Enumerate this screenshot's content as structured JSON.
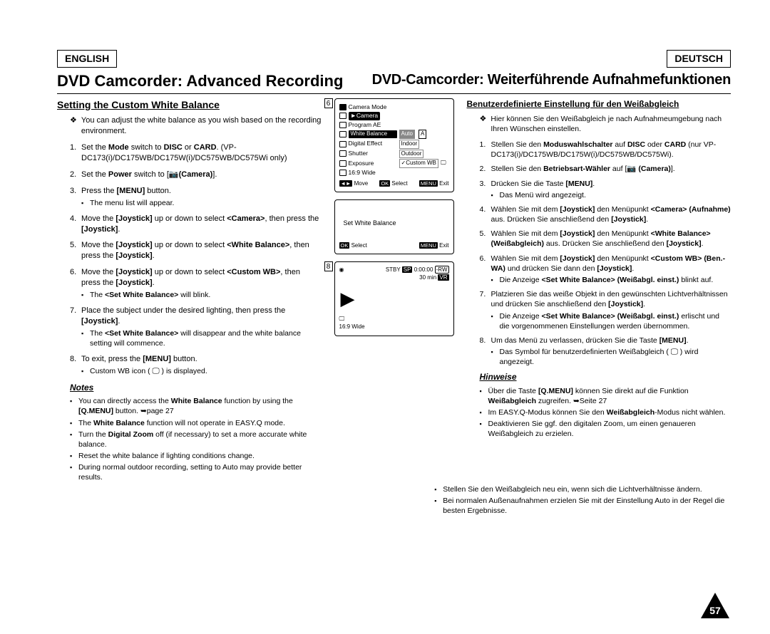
{
  "lang": {
    "left": "ENGLISH",
    "right": "DEUTSCH"
  },
  "title": {
    "left": "DVD Camcorder: Advanced Recording",
    "right": "DVD-Camcorder: Weiterführende Aufnahmefunktionen"
  },
  "en": {
    "heading": "Setting the Custom White Balance",
    "intro": "You can adjust the white balance as you wish based on the recording environment.",
    "steps": [
      {
        "html": "Set the <b>Mode</b> switch to <b>DISC</b> or <b>CARD</b>. (VP-DC173(i)/DC175WB/DC175W(i)/DC575WB/DC575Wi only)"
      },
      {
        "html": "Set the <b>Power</b> switch to [📷<b>(Camera)</b>]."
      },
      {
        "html": "Press the <b>[MENU]</b> button.",
        "sub": [
          "The menu list will appear."
        ]
      },
      {
        "html": "Move the <b>[Joystick]</b> up or down to select <b>&lt;Camera&gt;</b>, then press the <b>[Joystick]</b>."
      },
      {
        "html": "Move the <b>[Joystick]</b> up or down to select <b>&lt;White Balance&gt;</b>, then press the <b>[Joystick]</b>."
      },
      {
        "html": "Move the <b>[Joystick]</b> up or down to select <b>&lt;Custom WB&gt;</b>, then press the <b>[Joystick]</b>.",
        "sub": [
          "The <b>&lt;Set White Balance&gt;</b> will blink."
        ]
      },
      {
        "html": "Place the subject under the desired lighting, then press the <b>[Joystick]</b>.",
        "sub": [
          "The <b>&lt;Set White Balance&gt;</b> will disappear and the white balance setting will commence."
        ]
      },
      {
        "html": "To exit, press the <b>[MENU]</b> button.",
        "sub": [
          "Custom WB icon ( 🖵 ) is displayed."
        ]
      }
    ],
    "notes_head": "Notes",
    "notes": [
      "You can directly access the <b>White Balance</b> function by using the <b>[Q.MENU]</b> button. ➥page 27",
      "The <b>White Balance</b> function will not operate in EASY.Q mode.",
      "Turn the <b>Digital Zoom</b> off (if necessary) to set a more accurate white balance.",
      "Reset the white balance if lighting conditions change.",
      "During normal outdoor recording, setting to Auto may provide better results."
    ]
  },
  "de": {
    "heading": "Benutzerdefinierte Einstellung für den Weißabgleich",
    "intro": "Hier können Sie den Weißabgleich je nach Aufnahmeumgebung nach Ihren Wünschen einstellen.",
    "steps": [
      {
        "html": "Stellen Sie den <b>Moduswahlschalter</b> auf <b>DISC</b> oder <b>CARD</b> (nur VP-DC173(i)/DC175WB/DC175W(i)/DC575WB/DC575Wi)."
      },
      {
        "html": "Stellen Sie den <b>Betriebsart-Wähler</b> auf [📷 <b>(Camera)</b>]."
      },
      {
        "html": "Drücken Sie die Taste <b>[MENU]</b>.",
        "sub": [
          "Das Menü wird angezeigt."
        ]
      },
      {
        "html": "Wählen Sie mit dem <b>[Joystick]</b> den Menüpunkt <b>&lt;Camera&gt; (Aufnahme)</b> aus. Drücken Sie anschließend den <b>[Joystick]</b>."
      },
      {
        "html": "Wählen Sie mit dem <b>[Joystick]</b> den Menüpunkt <b>&lt;White Balance&gt; (Weißabgleich)</b> aus. Drücken Sie anschließend den <b>[Joystick]</b>."
      },
      {
        "html": "Wählen Sie mit dem <b>[Joystick]</b> den Menüpunkt <b>&lt;Custom WB&gt; (Ben.-WA)</b> und drücken Sie dann den <b>[Joystick]</b>.",
        "sub": [
          "Die Anzeige <b>&lt;Set White Balance&gt; (Weißabgl. einst.)</b> blinkt auf."
        ]
      },
      {
        "html": "Platzieren Sie das weiße Objekt in den gewünschten Lichtverhältnissen und drücken Sie anschließend den <b>[Joystick]</b>.",
        "sub": [
          "Die Anzeige <b>&lt;Set White Balance&gt; (Weißabgl. einst.)</b> erlischt und die vorgenommenen Einstellungen werden übernommen."
        ]
      },
      {
        "html": "Um das Menü zu verlassen, drücken Sie die Taste <b>[MENU]</b>.",
        "sub": [
          "Das Symbol für benutzerdefinierten Weißabgleich ( 🖵 ) wird angezeigt."
        ]
      }
    ],
    "notes_head": "Hinweise",
    "notes": [
      "Über die Taste <b>[Q.MENU]</b> können Sie direkt auf die Funktion <b>Weißabgleich</b> zugreifen. ➥Seite 27",
      "Im EASY.Q-Modus können Sie den <b>Weißabgleich</b>-Modus nicht wählen.",
      "Deaktivieren Sie ggf. den digitalen Zoom, um einen genaueren Weißabgleich zu erzielen.",
      "Stellen Sie den Weißabgleich neu ein, wenn sich die Lichtverhältnisse ändern.",
      "Bei normalen Außenaufnahmen erzielen Sie mit der Einstellung Auto in der Regel die besten Ergebnisse."
    ]
  },
  "figs": {
    "num6": "6",
    "num8": "8",
    "screen1": {
      "title": "Camera Mode",
      "cat": "►Camera",
      "items": [
        "Program AE",
        "White Balance",
        "Digital Effect",
        "Shutter",
        "Exposure",
        "16:9 Wide"
      ],
      "opts": [
        "Auto",
        "Indoor",
        "Outdoor",
        "✓Custom WB"
      ],
      "opt_badge": "A",
      "footer": {
        "move": "Move",
        "ok": "OK",
        "select": "Select",
        "menu": "MENU",
        "exit": "Exit"
      }
    },
    "screen2": {
      "text": "Set White Balance",
      "footer": {
        "ok": "OK",
        "select": "Select",
        "menu": "MENU",
        "exit": "Exit"
      }
    },
    "screen3": {
      "stby": "STBY",
      "sp": "SP",
      "time": "0:00:00",
      "rw": "-RW",
      "min": "30 min",
      "vr": "VR",
      "wide": "16:9 Wide"
    }
  },
  "page": "57",
  "colors": {
    "text": "#000000",
    "bg": "#ffffff"
  }
}
